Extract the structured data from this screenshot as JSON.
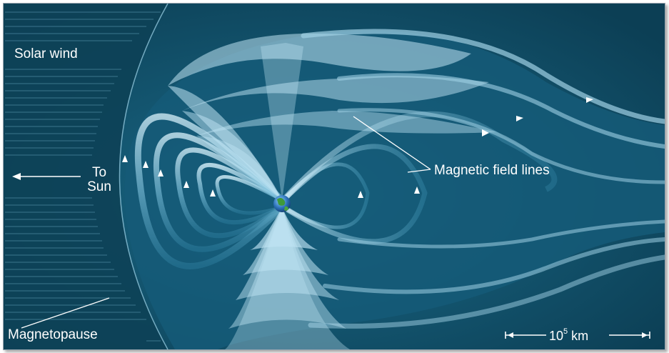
{
  "labels": {
    "solar_wind": "Solar wind",
    "to": "To",
    "sun": "Sun",
    "field_lines": "Magnetic field lines",
    "magnetopause": "Magnetopause",
    "scale_base": "10",
    "scale_exp": "5",
    "scale_unit": " km"
  },
  "colors": {
    "background": "#0f4b63",
    "field_line": "#a8d8ec",
    "field_line_dark": "#1c6684",
    "text": "#ffffff",
    "earth_land": "#3f9a3a",
    "earth_ocean": "#2a6fb6"
  },
  "icons": {
    "earth": "earth-globe-icon",
    "arrow_left": "arrow-left-icon",
    "field_arrow": "arrowhead-icon"
  }
}
